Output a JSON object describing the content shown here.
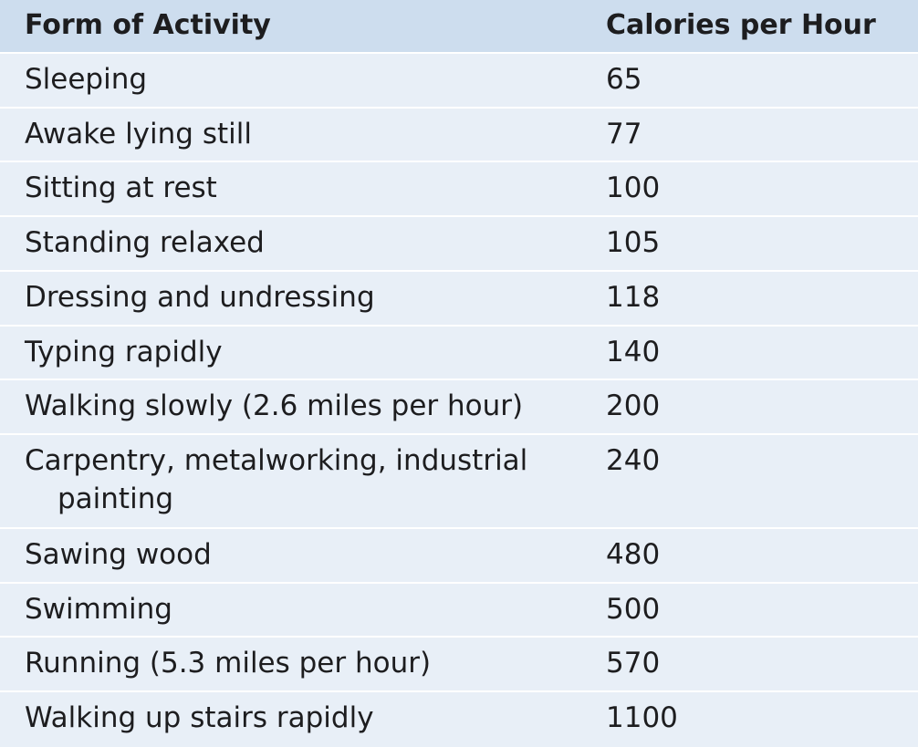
{
  "table": {
    "headers": {
      "activity": "Form of Activity",
      "calories": "Calories per Hour"
    },
    "rows": [
      {
        "activity": "Sleeping",
        "calories": "65"
      },
      {
        "activity": "Awake lying still",
        "calories": "77"
      },
      {
        "activity": "Sitting at rest",
        "calories": "100"
      },
      {
        "activity": "Standing relaxed",
        "calories": "105"
      },
      {
        "activity": "Dressing and undressing",
        "calories": "118"
      },
      {
        "activity": "Typing rapidly",
        "calories": "140"
      },
      {
        "activity": "Walking slowly (2.6 miles per hour)",
        "calories": "200"
      },
      {
        "activity": "Carpentry, metalworking, industrial painting",
        "calories": "240"
      },
      {
        "activity": "Sawing wood",
        "calories": "480"
      },
      {
        "activity": "Swimming",
        "calories": "500"
      },
      {
        "activity": "Running (5.3 miles per hour)",
        "calories": "570"
      },
      {
        "activity": "Walking up stairs rapidly",
        "calories": "1100"
      }
    ]
  }
}
